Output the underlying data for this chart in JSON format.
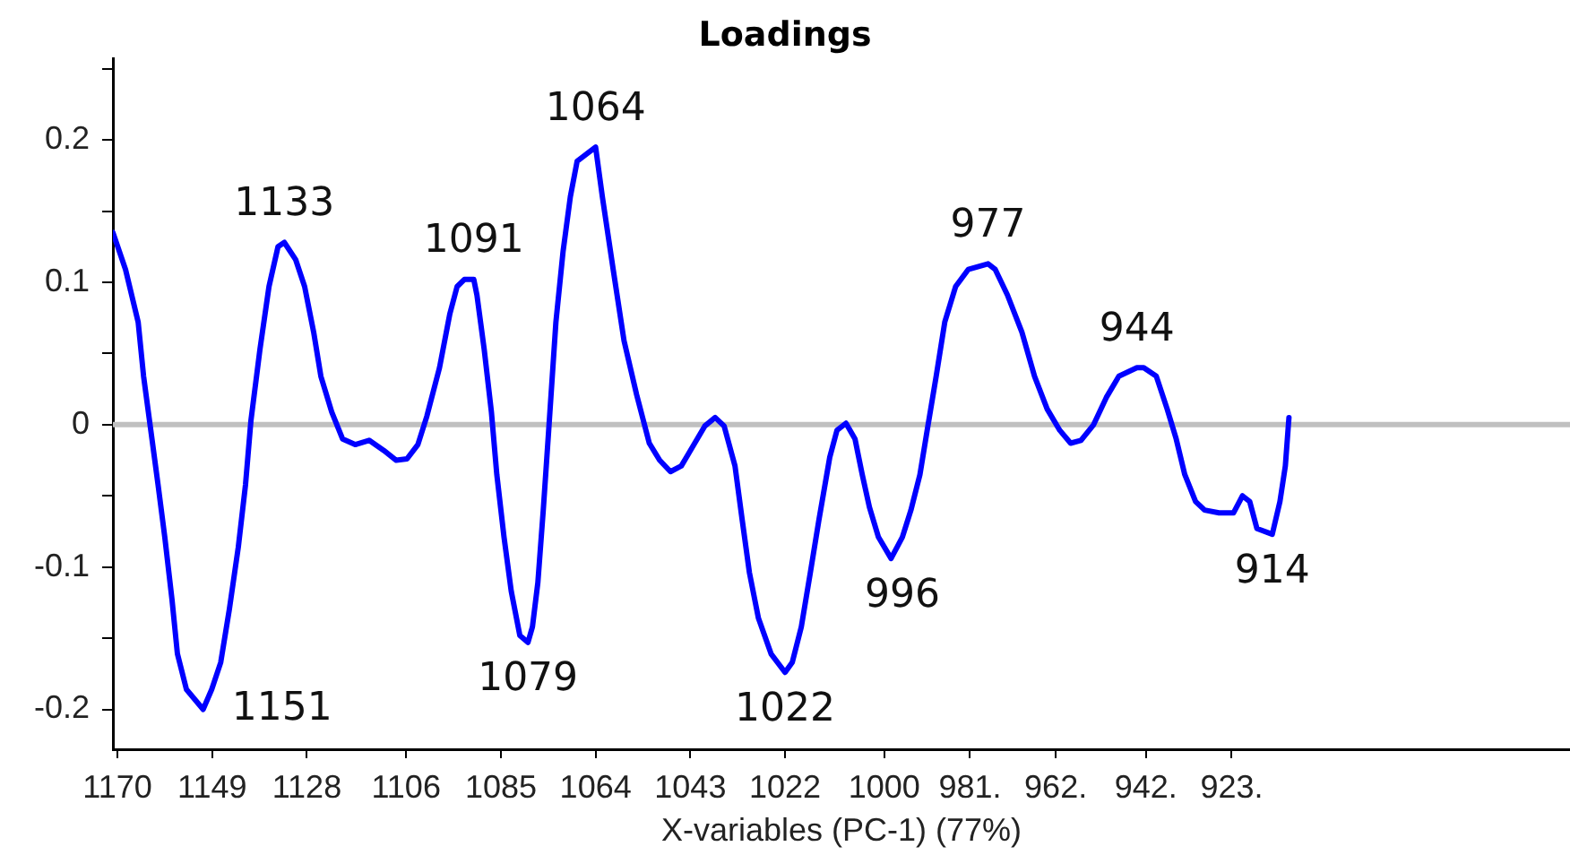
{
  "chart_data": {
    "type": "line",
    "title": "Loadings",
    "xlabel": "X-variables (PC-1) (77%)",
    "x": [
      1171,
      1168.2,
      1165.4,
      1164.2,
      1162.6,
      1161,
      1159.5,
      1157.9,
      1156.7,
      1154.7,
      1151,
      1149.1,
      1147.1,
      1145.2,
      1143.2,
      1141.6,
      1140.4,
      1138.4,
      1136.4,
      1134.4,
      1133,
      1130.5,
      1128.5,
      1126.5,
      1124.9,
      1122.5,
      1120.1,
      1117.3,
      1114.2,
      1111,
      1108.2,
      1105.8,
      1103.4,
      1101.4,
      1098.6,
      1096.3,
      1094.7,
      1093.1,
      1091,
      1090.3,
      1088.7,
      1087.1,
      1085.9,
      1084.3,
      1082.7,
      1080.8,
      1079,
      1078,
      1076.8,
      1075.6,
      1074.4,
      1072.8,
      1071.2,
      1069.6,
      1068.1,
      1064,
      1062.5,
      1060.1,
      1057.7,
      1054.9,
      1052.1,
      1049.8,
      1047.4,
      1045,
      1042.2,
      1039.8,
      1037.5,
      1035.5,
      1033.1,
      1031.5,
      1029.9,
      1027.9,
      1025.1,
      1022,
      1020.4,
      1018.4,
      1016.4,
      1014.5,
      1012.1,
      1010.5,
      1008.5,
      1006.5,
      1004.9,
      1003.3,
      1001.3,
      998.5,
      996,
      994.1,
      992.1,
      990.5,
      988.5,
      986.6,
      984.2,
      981.4,
      977,
      975.4,
      972.7,
      969.5,
      966.7,
      963.9,
      961.1,
      958.7,
      956.4,
      953.6,
      950.8,
      948,
      944,
      942.5,
      939.7,
      937.3,
      935.3,
      933.4,
      931,
      929,
      925.8,
      922.6,
      920.6,
      919,
      917.4,
      914,
      912.3,
      911.1,
      910.3
    ],
    "values": [
      0.135,
      0.109,
      0.072,
      0.034,
      -0.004,
      -0.042,
      -0.079,
      -0.123,
      -0.161,
      -0.186,
      -0.2,
      -0.186,
      -0.167,
      -0.13,
      -0.086,
      -0.042,
      0.003,
      0.053,
      0.097,
      0.125,
      0.128,
      0.116,
      0.097,
      0.065,
      0.034,
      0.009,
      -0.01,
      -0.014,
      -0.011,
      -0.018,
      -0.025,
      -0.024,
      -0.014,
      0.006,
      0.04,
      0.078,
      0.097,
      0.102,
      0.102,
      0.091,
      0.053,
      0.009,
      -0.035,
      -0.079,
      -0.117,
      -0.148,
      -0.153,
      -0.142,
      -0.111,
      -0.06,
      -0.004,
      0.072,
      0.122,
      0.16,
      0.185,
      0.195,
      0.16,
      0.109,
      0.059,
      0.021,
      -0.013,
      -0.025,
      -0.033,
      -0.029,
      -0.014,
      -0.001,
      0.005,
      -0.001,
      -0.029,
      -0.067,
      -0.104,
      -0.136,
      -0.161,
      -0.174,
      -0.167,
      -0.142,
      -0.104,
      -0.067,
      -0.023,
      -0.004,
      0.001,
      -0.01,
      -0.035,
      -0.058,
      -0.079,
      -0.094,
      -0.079,
      -0.06,
      -0.035,
      -0.004,
      0.034,
      0.072,
      0.097,
      0.109,
      0.113,
      0.109,
      0.091,
      0.065,
      0.034,
      0.011,
      -0.004,
      -0.013,
      -0.011,
      0,
      0.019,
      0.034,
      0.04,
      0.04,
      0.034,
      0.011,
      -0.01,
      -0.035,
      -0.054,
      -0.06,
      -0.062,
      -0.062,
      -0.05,
      -0.054,
      -0.073,
      -0.077,
      -0.054,
      -0.029,
      0.005
    ],
    "color": "#0000ff",
    "xlim": [
      1171,
      848
    ],
    "xticks": [
      1170,
      1149,
      1128,
      1106,
      1085,
      1064,
      1043,
      1022,
      1000,
      {
        "value": 981,
        "label": "981."
      },
      {
        "value": 962,
        "label": "962."
      },
      {
        "value": 942,
        "label": "942."
      },
      {
        "value": 923,
        "label": "923."
      }
    ],
    "ylim": [
      -0.228,
      0.257
    ],
    "yticks": [
      -0.2,
      {
        "value": -0.15,
        "label": null
      },
      -0.1,
      {
        "value": -0.05,
        "label": null
      },
      0,
      {
        "value": 0.05,
        "label": null
      },
      0.1,
      {
        "value": 0.15,
        "label": null
      },
      0.2,
      {
        "value": 0.25,
        "label": null
      }
    ],
    "ref_lines": [
      {
        "axis": "y",
        "value": 0,
        "color": "#c0c0c0"
      }
    ],
    "annotations": [
      {
        "text": "1151",
        "x": 1151,
        "y": -0.2
      },
      {
        "text": "1133",
        "x": 1133,
        "y": 0.128
      },
      {
        "text": "1091",
        "x": 1091,
        "y": 0.102
      },
      {
        "text": "1064",
        "x": 1064,
        "y": 0.195
      },
      {
        "text": "1079",
        "x": 1079,
        "y": -0.153
      },
      {
        "text": "1022",
        "x": 1022,
        "y": -0.174
      },
      {
        "text": "996",
        "x": 996,
        "y": -0.094
      },
      {
        "text": "977",
        "x": 977,
        "y": 0.113
      },
      {
        "text": "944",
        "x": 944,
        "y": 0.04
      },
      {
        "text": "914",
        "x": 914,
        "y": -0.077
      }
    ]
  }
}
